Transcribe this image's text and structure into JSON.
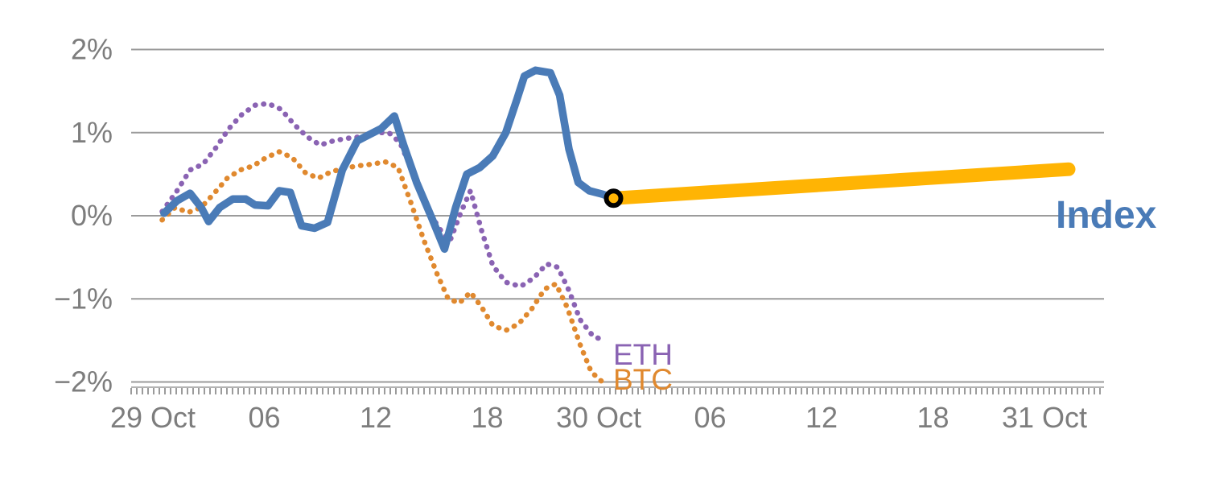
{
  "chart_data": {
    "type": "line",
    "title": "",
    "x_axis": {
      "unit": "hour",
      "ticks": [
        {
          "pos": 0,
          "label": "29 Oct"
        },
        {
          "pos": 6,
          "label": "06"
        },
        {
          "pos": 12,
          "label": "12"
        },
        {
          "pos": 18,
          "label": "18"
        },
        {
          "pos": 24,
          "label": "30 Oct"
        },
        {
          "pos": 30,
          "label": "06"
        },
        {
          "pos": 36,
          "label": "12"
        },
        {
          "pos": 42,
          "label": "18"
        },
        {
          "pos": 48,
          "label": "31 Oct"
        }
      ]
    },
    "y_axis": {
      "unit": "percent change",
      "range": [
        -2,
        2
      ],
      "ticks": [
        {
          "value": 2,
          "label": "2%"
        },
        {
          "value": 1,
          "label": "1%"
        },
        {
          "value": 0,
          "label": "0%"
        },
        {
          "value": -1,
          "label": "−1%"
        },
        {
          "value": -2,
          "label": "−2%"
        }
      ]
    },
    "grid": true,
    "legend_position": "inline-labels",
    "colors": {
      "grid": "#9b9b9b",
      "tick_text": "#7d7d7d",
      "background": "#ffffff",
      "index_blue": "#4a7bb7",
      "eth_purple": "#8a63b3",
      "btc_orange": "#e0892f",
      "forecast_amber": "#ffb404",
      "marker_ring": "#000000"
    },
    "series": [
      {
        "id": "eth",
        "name": "ETH",
        "color": "#8a63b3",
        "style": "dotted",
        "width": 6.5,
        "points": [
          [
            0.5,
            0.05
          ],
          [
            1.3,
            0.3
          ],
          [
            2,
            0.55
          ],
          [
            2.7,
            0.62
          ],
          [
            3.4,
            0.82
          ],
          [
            4.1,
            1.05
          ],
          [
            4.8,
            1.22
          ],
          [
            5.5,
            1.33
          ],
          [
            6.2,
            1.35
          ],
          [
            6.9,
            1.28
          ],
          [
            7.6,
            1.1
          ],
          [
            8.3,
            0.95
          ],
          [
            9,
            0.85
          ],
          [
            9.7,
            0.9
          ],
          [
            10.4,
            0.93
          ],
          [
            11.2,
            0.95
          ],
          [
            12,
            1.0
          ],
          [
            12.7,
            1.0
          ],
          [
            13.3,
            0.88
          ],
          [
            14,
            0.52
          ],
          [
            14.7,
            0.12
          ],
          [
            15.4,
            -0.15
          ],
          [
            16,
            -0.3
          ],
          [
            16.6,
            0.05
          ],
          [
            17.1,
            0.3
          ],
          [
            17.7,
            -0.18
          ],
          [
            18.3,
            -0.6
          ],
          [
            19,
            -0.8
          ],
          [
            19.8,
            -0.85
          ],
          [
            20.5,
            -0.75
          ],
          [
            21.2,
            -0.58
          ],
          [
            21.8,
            -0.62
          ],
          [
            22.4,
            -0.9
          ],
          [
            23,
            -1.25
          ],
          [
            23.7,
            -1.45
          ],
          [
            24.3,
            -1.5
          ]
        ]
      },
      {
        "id": "btc",
        "name": "BTC",
        "color": "#e0892f",
        "style": "dotted",
        "width": 6.5,
        "points": [
          [
            0.5,
            -0.05
          ],
          [
            1.2,
            0.1
          ],
          [
            1.9,
            0.04
          ],
          [
            2.6,
            0.1
          ],
          [
            3.3,
            0.27
          ],
          [
            4,
            0.45
          ],
          [
            4.7,
            0.55
          ],
          [
            5.4,
            0.6
          ],
          [
            6.1,
            0.7
          ],
          [
            6.8,
            0.77
          ],
          [
            7.5,
            0.7
          ],
          [
            8.2,
            0.52
          ],
          [
            8.9,
            0.45
          ],
          [
            9.6,
            0.53
          ],
          [
            10.3,
            0.57
          ],
          [
            11,
            0.6
          ],
          [
            11.8,
            0.62
          ],
          [
            12.5,
            0.65
          ],
          [
            13.2,
            0.58
          ],
          [
            13.9,
            0.15
          ],
          [
            14.6,
            -0.3
          ],
          [
            15.3,
            -0.7
          ],
          [
            15.9,
            -1.0
          ],
          [
            16.5,
            -1.05
          ],
          [
            17.1,
            -0.92
          ],
          [
            17.7,
            -1.1
          ],
          [
            18.3,
            -1.32
          ],
          [
            19,
            -1.38
          ],
          [
            19.7,
            -1.3
          ],
          [
            20.4,
            -1.12
          ],
          [
            21.1,
            -0.88
          ],
          [
            21.7,
            -0.82
          ],
          [
            22.3,
            -1.1
          ],
          [
            23,
            -1.55
          ],
          [
            23.6,
            -1.88
          ],
          [
            24.2,
            -2.0
          ]
        ]
      },
      {
        "id": "index",
        "name": "Index",
        "color": "#4a7bb7",
        "style": "solid",
        "width": 9.5,
        "points": [
          [
            0.6,
            0.03
          ],
          [
            1.3,
            0.18
          ],
          [
            2,
            0.27
          ],
          [
            2.6,
            0.1
          ],
          [
            3,
            -0.07
          ],
          [
            3.6,
            0.1
          ],
          [
            4.3,
            0.2
          ],
          [
            5,
            0.2
          ],
          [
            5.5,
            0.13
          ],
          [
            6.2,
            0.12
          ],
          [
            6.8,
            0.3
          ],
          [
            7.4,
            0.28
          ],
          [
            8,
            -0.12
          ],
          [
            8.7,
            -0.15
          ],
          [
            9.4,
            -0.08
          ],
          [
            10.2,
            0.55
          ],
          [
            11,
            0.9
          ],
          [
            11.6,
            0.97
          ],
          [
            12.3,
            1.05
          ],
          [
            13,
            1.2
          ],
          [
            13.5,
            0.85
          ],
          [
            14.2,
            0.4
          ],
          [
            15,
            -0.02
          ],
          [
            15.7,
            -0.4
          ],
          [
            16.3,
            0.1
          ],
          [
            16.9,
            0.5
          ],
          [
            17.6,
            0.58
          ],
          [
            18.3,
            0.72
          ],
          [
            19,
            1.0
          ],
          [
            19.6,
            1.4
          ],
          [
            20,
            1.68
          ],
          [
            20.6,
            1.75
          ],
          [
            21.4,
            1.72
          ],
          [
            21.9,
            1.45
          ],
          [
            22.4,
            0.8
          ],
          [
            22.9,
            0.4
          ],
          [
            23.5,
            0.3
          ],
          [
            24.2,
            0.26
          ],
          [
            24.8,
            0.21
          ]
        ]
      },
      {
        "id": "index-forecast",
        "name": "",
        "color": "#ffb404",
        "style": "solid",
        "width": 17,
        "points": [
          [
            24.8,
            0.21
          ],
          [
            49.3,
            0.56
          ]
        ]
      }
    ],
    "marker": {
      "x": 24.8,
      "y": 0.21,
      "fill": "#ffb404",
      "ring_color": "#000000",
      "radius": 9,
      "ring_width": 6
    }
  }
}
